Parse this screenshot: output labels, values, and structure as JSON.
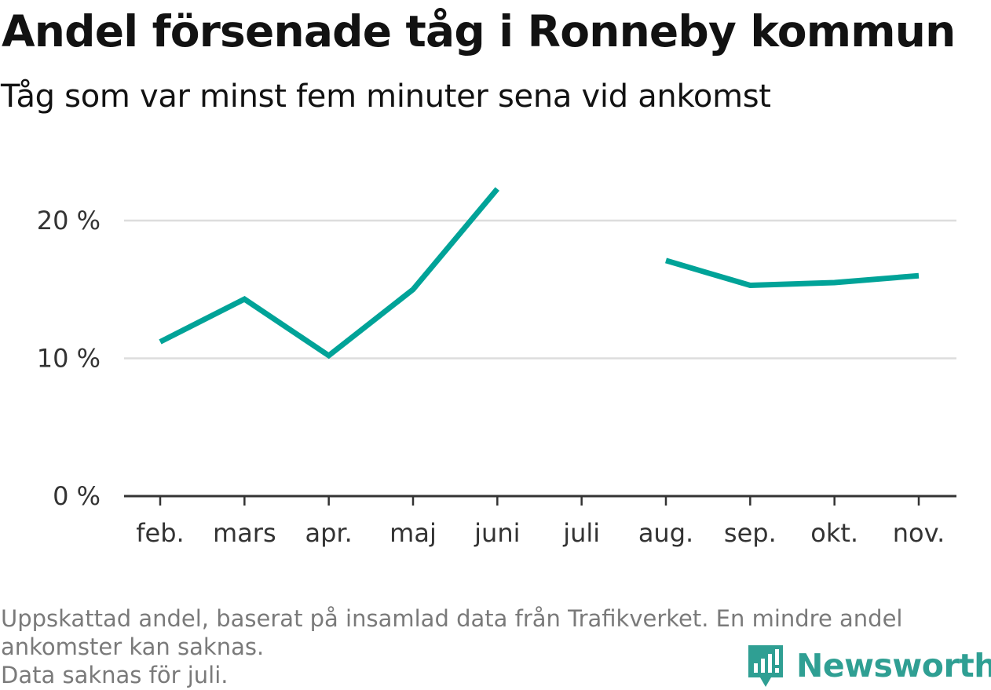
{
  "header": {
    "title": "Andel försenade tåg i Ronneby kommun",
    "subtitle": "Tåg som var minst fem minuter sena vid ankomst"
  },
  "footer": {
    "note_line1": "Uppskattad andel, baserat på insamlad data från Trafikverket. En mindre andel",
    "note_line2": "ankomster kan saknas.",
    "note_line3": "Data saknas för juli.",
    "brand": "Newsworthy",
    "brand_icon": "newsworthy-logo-icon"
  },
  "colors": {
    "line": "#00a398",
    "grid": "#dddddd",
    "axis": "#333333",
    "brand": "#2f9f93"
  },
  "chart_data": {
    "type": "line",
    "categories": [
      "feb.",
      "mars",
      "apr.",
      "maj",
      "juni",
      "juli",
      "aug.",
      "sep.",
      "okt.",
      "nov."
    ],
    "series": [
      {
        "values": [
          11.2,
          14.3,
          10.2,
          15.0,
          22.3,
          null,
          17.1,
          15.3,
          15.5,
          16.0
        ]
      }
    ],
    "y_ticks": [
      0,
      10,
      20
    ],
    "y_tick_labels": [
      "0 %",
      "10 %",
      "20 %"
    ],
    "ylim": [
      0,
      24
    ],
    "grid": true,
    "legend": "none"
  }
}
